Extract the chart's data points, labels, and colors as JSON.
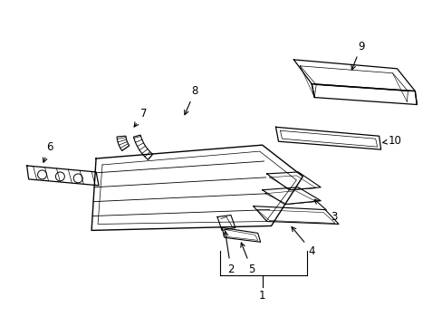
{
  "background_color": "#ffffff",
  "line_color": "#000000",
  "line_width": 0.8,
  "label_fontsize": 8.5
}
